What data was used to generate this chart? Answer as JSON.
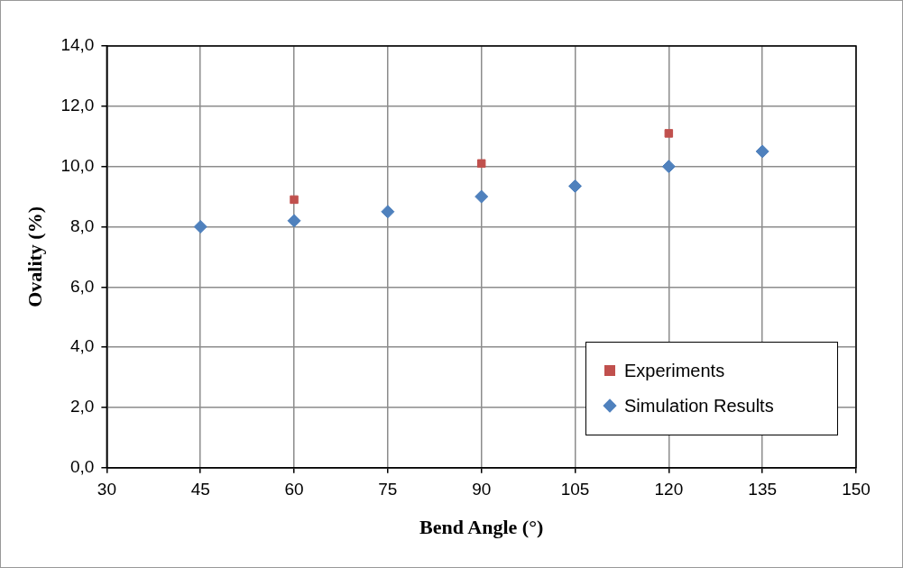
{
  "chart_data": {
    "type": "scatter",
    "xlabel": "Bend Angle (°)",
    "ylabel": "Ovality (%)",
    "xlim": [
      30,
      150
    ],
    "xticks": [
      30,
      45,
      60,
      75,
      90,
      105,
      120,
      135,
      150
    ],
    "ylim": [
      0,
      14
    ],
    "yticks": [
      {
        "value": 0,
        "label": "0,0"
      },
      {
        "value": 2,
        "label": "2,0"
      },
      {
        "value": 4,
        "label": "4,0"
      },
      {
        "value": 6,
        "label": "6,0"
      },
      {
        "value": 8,
        "label": "8,0"
      },
      {
        "value": 10,
        "label": "10,0"
      },
      {
        "value": 12,
        "label": "12,0"
      },
      {
        "value": 14,
        "label": "14,0"
      }
    ],
    "grid": true,
    "legend": "bottom right",
    "series": [
      {
        "name": "Experiments",
        "color": "#c0504d",
        "marker": "square",
        "x": [
          60,
          90,
          120
        ],
        "values": [
          8.9,
          10.1,
          11.1
        ]
      },
      {
        "name": "Simulation Results",
        "color": "#4f81bd",
        "marker": "diamond",
        "x": [
          45,
          60,
          75,
          90,
          105,
          120,
          135
        ],
        "values": [
          8.0,
          8.2,
          8.5,
          9.0,
          9.35,
          10.0,
          10.5
        ]
      }
    ]
  }
}
